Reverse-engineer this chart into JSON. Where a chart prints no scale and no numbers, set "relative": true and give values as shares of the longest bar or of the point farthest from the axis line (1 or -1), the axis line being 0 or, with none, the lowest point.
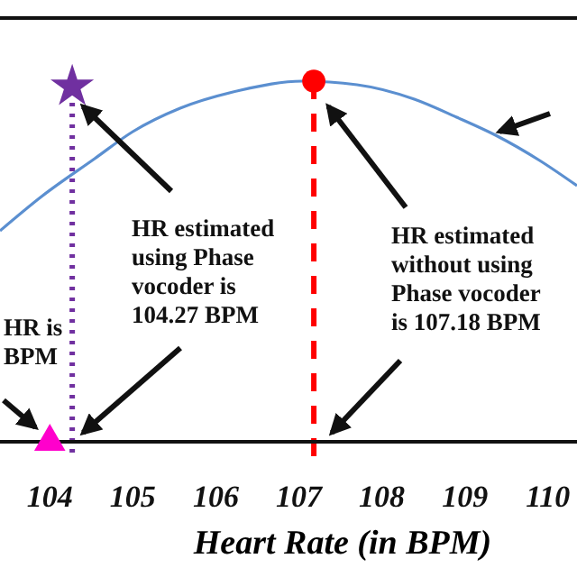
{
  "chart_data": {
    "type": "line",
    "relative": true,
    "xlabel": "Heart Rate (in BPM)",
    "xlim": [
      103.4,
      110.35
    ],
    "xticks": [
      104,
      105,
      106,
      107,
      108,
      109,
      110
    ],
    "series": [
      {
        "color": "#5b8fd0",
        "x": [
          103.4,
          103.9,
          104.54,
          105.0,
          105.57,
          106.3,
          107.04,
          107.7,
          108.39,
          108.9,
          109.37,
          109.9,
          110.35
        ],
        "values": [
          0.585,
          0.68,
          0.785,
          0.86,
          0.925,
          0.975,
          1,
          0.99,
          0.95,
          0.9,
          0.85,
          0.78,
          0.71
        ]
      },
      {
        "type": "scatter",
        "marker": "star",
        "color": "#7030a0",
        "x": [
          104.27
        ],
        "values": [
          0.985
        ]
      },
      {
        "type": "scatter",
        "marker": "circle",
        "color": "#ff0000",
        "x": [
          107.18
        ],
        "values": [
          1
        ]
      },
      {
        "type": "scatter",
        "marker": "triangle",
        "color": "#ff00cc",
        "x": [
          104.0
        ],
        "values": [
          0
        ]
      }
    ],
    "ref_lines": [
      {
        "axis": "x",
        "value": 104.27,
        "color": "#7030a0",
        "line_style": "dotted",
        "label": "HR estimated using Phase vocoder is 104.27 BPM"
      },
      {
        "axis": "x",
        "value": 107.18,
        "color": "#ff0000",
        "line_style": "dashed",
        "label": "HR estimated without using Phase vocoder is 107.18 BPM"
      }
    ],
    "annotations": [
      "HR is BPM"
    ]
  }
}
